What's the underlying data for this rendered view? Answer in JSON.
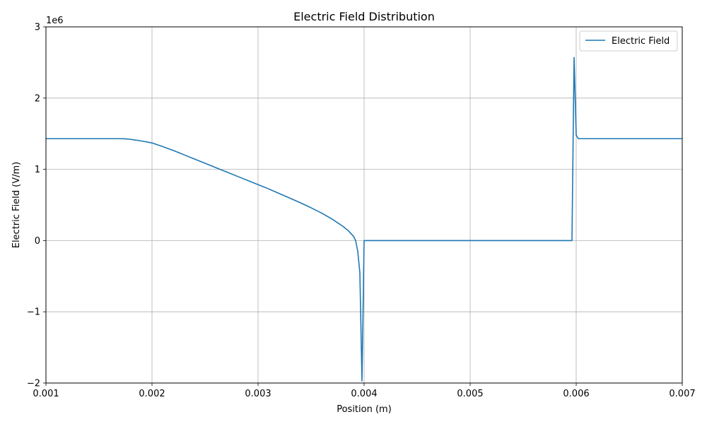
{
  "chart_data": {
    "type": "line",
    "title": "Electric Field Distribution",
    "xlabel": "Position (m)",
    "ylabel": "Electric Field (V/m)",
    "y_offset_label": "1e6",
    "xlim": [
      0.001,
      0.007
    ],
    "ylim": [
      -2,
      3
    ],
    "x_ticks": [
      0.001,
      0.002,
      0.003,
      0.004,
      0.005,
      0.006,
      0.007
    ],
    "x_tick_labels": [
      "0.001",
      "0.002",
      "0.003",
      "0.004",
      "0.005",
      "0.006",
      "0.007"
    ],
    "y_ticks": [
      -2,
      -1,
      0,
      1,
      2,
      3
    ],
    "y_tick_labels": [
      "−2",
      "−1",
      "0",
      "1",
      "2",
      "3"
    ],
    "grid": true,
    "legend_position": "top-right",
    "color": "#1f77b4",
    "series": [
      {
        "name": "Electric Field",
        "x": [
          0.001,
          0.0012,
          0.0014,
          0.0016,
          0.0017,
          0.00175,
          0.0018,
          0.00185,
          0.0019,
          0.00195,
          0.002,
          0.0021,
          0.0022,
          0.0023,
          0.0024,
          0.0025,
          0.0026,
          0.0027,
          0.0028,
          0.0029,
          0.003,
          0.0031,
          0.0032,
          0.0033,
          0.0034,
          0.0035,
          0.0036,
          0.0037,
          0.0038,
          0.00385,
          0.0039,
          0.00392,
          0.00394,
          0.00396,
          0.00398,
          0.004,
          0.004015,
          0.00403,
          0.0045,
          0.005,
          0.0055,
          0.00596,
          0.00598,
          0.006,
          0.00602,
          0.00605,
          0.0065,
          0.007
        ],
        "y": [
          1.43,
          1.43,
          1.43,
          1.43,
          1.43,
          1.428,
          1.42,
          1.41,
          1.398,
          1.385,
          1.37,
          1.32,
          1.265,
          1.205,
          1.145,
          1.085,
          1.025,
          0.965,
          0.905,
          0.845,
          0.785,
          0.725,
          0.66,
          0.595,
          0.53,
          0.46,
          0.385,
          0.3,
          0.2,
          0.14,
          0.06,
          0.0,
          -0.15,
          -0.45,
          -1.97,
          0.0,
          0.0,
          0.0,
          0.0,
          0.0,
          0.0,
          0.0,
          2.57,
          1.48,
          1.43,
          1.43,
          1.43,
          1.43
        ]
      }
    ]
  }
}
